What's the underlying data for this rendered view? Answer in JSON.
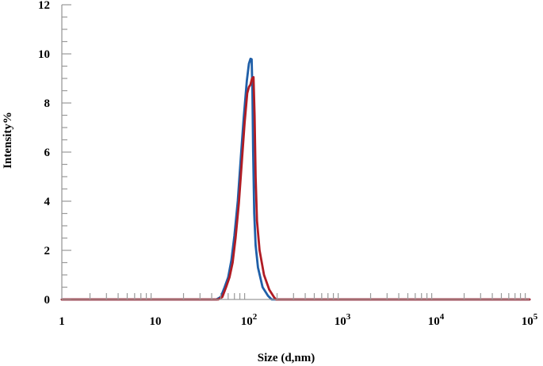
{
  "chart_data": {
    "type": "line",
    "title": "",
    "xlabel": "Size (d,nm)",
    "ylabel": "Intensity%",
    "x_scale": "log",
    "xlim": [
      1,
      100000
    ],
    "ylim": [
      0,
      12
    ],
    "x_tick_values": [
      1,
      10,
      100,
      1000,
      10000,
      100000
    ],
    "x_tick_labels": [
      {
        "base": "1",
        "exp": ""
      },
      {
        "base": "10",
        "exp": ""
      },
      {
        "base": "10",
        "exp": "2"
      },
      {
        "base": "10",
        "exp": "3"
      },
      {
        "base": "10",
        "exp": "4"
      },
      {
        "base": "10",
        "exp": "5"
      }
    ],
    "y_ticks": [
      0,
      2,
      4,
      6,
      8,
      10,
      12
    ],
    "grid": false,
    "legend": "none",
    "series": [
      {
        "color": "#1f5fa8",
        "points": [
          [
            1,
            0
          ],
          [
            45,
            0
          ],
          [
            50,
            0.1
          ],
          [
            55,
            0.5
          ],
          [
            60,
            0.9
          ],
          [
            65,
            1.6
          ],
          [
            70,
            2.6
          ],
          [
            76,
            4.0
          ],
          [
            82,
            5.8
          ],
          [
            88,
            7.4
          ],
          [
            95,
            8.9
          ],
          [
            100,
            9.6
          ],
          [
            104,
            9.8
          ],
          [
            107,
            9.78
          ],
          [
            109,
            8.5
          ],
          [
            111,
            6.0
          ],
          [
            114,
            3.5
          ],
          [
            118,
            2.2
          ],
          [
            125,
            1.3
          ],
          [
            140,
            0.5
          ],
          [
            160,
            0.15
          ],
          [
            175,
            0
          ],
          [
            100000,
            0
          ]
        ]
      },
      {
        "color": "#b01c24",
        "points": [
          [
            1,
            0
          ],
          [
            47,
            0
          ],
          [
            52,
            0.1
          ],
          [
            57,
            0.5
          ],
          [
            62,
            0.9
          ],
          [
            67,
            1.5
          ],
          [
            72,
            2.5
          ],
          [
            78,
            3.9
          ],
          [
            84,
            5.6
          ],
          [
            90,
            7.2
          ],
          [
            96,
            8.4
          ],
          [
            100,
            8.65
          ],
          [
            104,
            8.75
          ],
          [
            108,
            9.0
          ],
          [
            112,
            9.05
          ],
          [
            115,
            7.5
          ],
          [
            118,
            5.0
          ],
          [
            122,
            3.2
          ],
          [
            130,
            2.0
          ],
          [
            145,
            1.0
          ],
          [
            165,
            0.4
          ],
          [
            185,
            0.1
          ],
          [
            195,
            0
          ],
          [
            100000,
            0
          ]
        ]
      }
    ]
  }
}
